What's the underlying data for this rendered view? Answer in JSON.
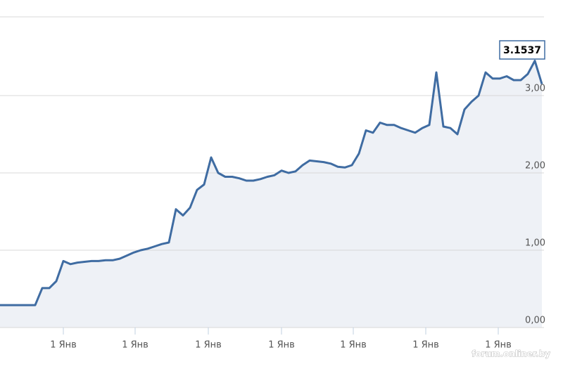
{
  "chart_data": {
    "type": "area",
    "values": [
      0.29,
      0.29,
      0.29,
      0.29,
      0.29,
      0.29,
      0.51,
      0.51,
      0.6,
      0.86,
      0.82,
      0.84,
      0.85,
      0.86,
      0.86,
      0.87,
      0.87,
      0.89,
      0.93,
      0.97,
      1.0,
      1.02,
      1.05,
      1.08,
      1.1,
      1.53,
      1.45,
      1.55,
      1.78,
      1.85,
      2.2,
      2.0,
      1.95,
      1.95,
      1.93,
      1.9,
      1.9,
      1.92,
      1.95,
      1.97,
      2.03,
      2.0,
      2.02,
      2.1,
      2.16,
      2.15,
      2.14,
      2.12,
      2.08,
      2.07,
      2.1,
      2.25,
      2.55,
      2.52,
      2.65,
      2.62,
      2.62,
      2.58,
      2.55,
      2.52,
      2.58,
      2.62,
      3.3,
      2.6,
      2.58,
      2.5,
      2.82,
      2.92,
      3.0,
      3.3,
      3.22,
      3.22,
      3.25,
      3.2,
      3.2,
      3.28,
      3.45,
      3.15
    ],
    "color": "#3f6ca2",
    "fill": "#eef1f6",
    "xlim": [
      0,
      77.3
    ],
    "xticks": [
      {
        "value": 9,
        "label": "1 Янв"
      },
      {
        "value": 19.2,
        "label": "1 Янв"
      },
      {
        "value": 29.6,
        "label": "1 Янв"
      },
      {
        "value": 40,
        "label": "1 Янв"
      },
      {
        "value": 50.2,
        "label": "1 Янв"
      },
      {
        "value": 60.5,
        "label": "1 Янв"
      },
      {
        "value": 70.8,
        "label": "1 Янв"
      }
    ],
    "ylim": [
      0,
      4
    ],
    "yticks": [
      {
        "value": 0,
        "label": "0,00"
      },
      {
        "value": 1,
        "label": "1,00"
      },
      {
        "value": 2,
        "label": "2,00"
      },
      {
        "value": 3,
        "label": "3,00"
      }
    ],
    "grid": true,
    "tooltip": "3.1537",
    "watermark": "forum.onliner.by"
  }
}
